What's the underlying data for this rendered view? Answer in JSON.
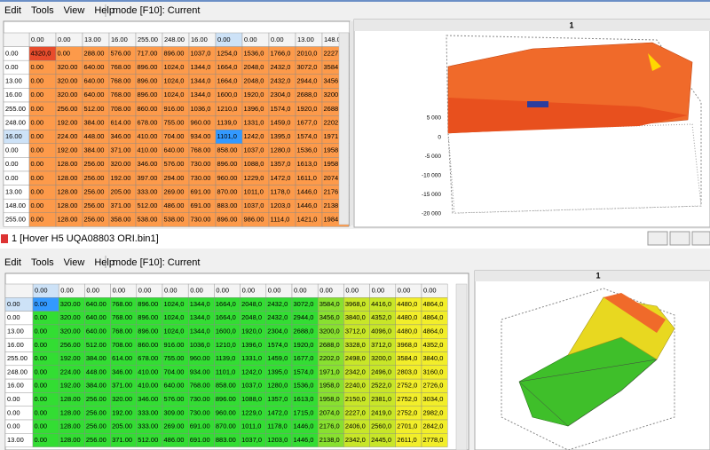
{
  "top": {
    "menu": [
      "Edit",
      "Tools",
      "View",
      "Help"
    ],
    "mode": "mode [F10]: Current",
    "table": {
      "columns": [
        "0.00",
        "0.00",
        "13.00",
        "16.00",
        "255.00",
        "248.00",
        "16.00",
        "0.00",
        "0.00",
        "0.00",
        "13.00",
        "148.0"
      ],
      "rows": [
        {
          "header": "0.00",
          "cells": [
            "4320,0",
            "0.00",
            "288.00",
            "576.00",
            "717.00",
            "896.00",
            "1037,0",
            "1254,0",
            "1536,0",
            "1766,0",
            "2010,0",
            "2227,"
          ]
        },
        {
          "header": "0.00",
          "cells": [
            "0.00",
            "320.00",
            "640.00",
            "768.00",
            "896.00",
            "1024,0",
            "1344,0",
            "1664,0",
            "2048,0",
            "2432,0",
            "3072,0",
            "3584"
          ]
        },
        {
          "header": "13.00",
          "cells": [
            "0.00",
            "320.00",
            "640.00",
            "768.00",
            "896.00",
            "1024,0",
            "1344,0",
            "1664,0",
            "2048,0",
            "2432,0",
            "2944,0",
            "3456"
          ]
        },
        {
          "header": "16.00",
          "cells": [
            "0.00",
            "320.00",
            "640.00",
            "768.00",
            "896.00",
            "1024,0",
            "1344,0",
            "1600,0",
            "1920,0",
            "2304,0",
            "2688,0",
            "3200"
          ]
        },
        {
          "header": "255.00",
          "cells": [
            "0.00",
            "256.00",
            "512.00",
            "708.00",
            "860.00",
            "916.00",
            "1036,0",
            "1210,0",
            "1396,0",
            "1574,0",
            "1920,0",
            "2688"
          ]
        },
        {
          "header": "248.00",
          "cells": [
            "0.00",
            "192.00",
            "384.00",
            "614.00",
            "678.00",
            "755.00",
            "960.00",
            "1139,0",
            "1331,0",
            "1459,0",
            "1677,0",
            "2202"
          ]
        },
        {
          "header": "16.00",
          "cells": [
            "0.00",
            "224.00",
            "448.00",
            "346.00",
            "410.00",
            "704.00",
            "934.00",
            "1101,0",
            "1242,0",
            "1395,0",
            "1574,0",
            "1971"
          ]
        },
        {
          "header": "0.00",
          "cells": [
            "0.00",
            "192.00",
            "384.00",
            "371.00",
            "410.00",
            "640.00",
            "768.00",
            "858.00",
            "1037,0",
            "1280,0",
            "1536,0",
            "1958"
          ]
        },
        {
          "header": "0.00",
          "cells": [
            "0.00",
            "128.00",
            "256.00",
            "320.00",
            "346.00",
            "576.00",
            "730.00",
            "896.00",
            "1088,0",
            "1357,0",
            "1613,0",
            "1958"
          ]
        },
        {
          "header": "0.00",
          "cells": [
            "0.00",
            "128.00",
            "256.00",
            "192.00",
            "397.00",
            "294.00",
            "730.00",
            "960.00",
            "1229,0",
            "1472,0",
            "1611,0",
            "2074"
          ]
        },
        {
          "header": "13.00",
          "cells": [
            "0.00",
            "128.00",
            "256.00",
            "205.00",
            "333.00",
            "269.00",
            "691.00",
            "870.00",
            "1011,0",
            "1178,0",
            "1446,0",
            "2176"
          ]
        },
        {
          "header": "148.00",
          "cells": [
            "0.00",
            "128.00",
            "256.00",
            "371.00",
            "512.00",
            "486.00",
            "691.00",
            "883.00",
            "1037,0",
            "1203,0",
            "1446,0",
            "2138"
          ]
        },
        {
          "header": "255.00",
          "cells": [
            "0.00",
            "128.00",
            "256.00",
            "358.00",
            "538.00",
            "538.00",
            "730.00",
            "896.00",
            "986.00",
            "1114,0",
            "1421,0",
            "1984"
          ]
        }
      ]
    },
    "chart": {
      "title": "1",
      "z_labels": [
        "5 000",
        "0",
        "-5 000",
        "-10 000",
        "-15 000",
        "-20 000"
      ]
    }
  },
  "title_bar": "1 [Hover H5 UQA08803 ORI.bin1]",
  "bottom": {
    "menu": [
      "Edit",
      "Tools",
      "View",
      "Help"
    ],
    "mode": "mode [F10]: Current",
    "table": {
      "columns": [
        "0.00",
        "0.00",
        "0.00",
        "0.00",
        "0.00",
        "0.00",
        "0.00",
        "0.00",
        "0.00",
        "0.00",
        "0.00",
        "0.00",
        "0.00",
        "0.00",
        "0.00",
        "0.00"
      ],
      "rows": [
        {
          "header": "0.00",
          "cells": [
            "0.00",
            "320.00",
            "640.00",
            "768.00",
            "896.00",
            "1024,0",
            "1344,0",
            "1664,0",
            "2048,0",
            "2432,0",
            "3072,0",
            "3584,0",
            "3968,0",
            "4416,0",
            "4480,0",
            "4864,0"
          ]
        },
        {
          "header": "0.00",
          "cells": [
            "0.00",
            "320.00",
            "640.00",
            "768.00",
            "896.00",
            "1024,0",
            "1344,0",
            "1664,0",
            "2048,0",
            "2432,0",
            "2944,0",
            "3456,0",
            "3840,0",
            "4352,0",
            "4480,0",
            "4864,0"
          ]
        },
        {
          "header": "13.00",
          "cells": [
            "0.00",
            "320.00",
            "640.00",
            "768.00",
            "896.00",
            "1024,0",
            "1344,0",
            "1600,0",
            "1920,0",
            "2304,0",
            "2688,0",
            "3200,0",
            "3712,0",
            "4096,0",
            "4480,0",
            "4864,0"
          ]
        },
        {
          "header": "16.00",
          "cells": [
            "0.00",
            "256.00",
            "512.00",
            "708.00",
            "860.00",
            "916.00",
            "1036,0",
            "1210,0",
            "1396,0",
            "1574,0",
            "1920,0",
            "2688,0",
            "3328,0",
            "3712,0",
            "3968,0",
            "4352,0"
          ]
        },
        {
          "header": "255.00",
          "cells": [
            "0.00",
            "192.00",
            "384.00",
            "614.00",
            "678.00",
            "755.00",
            "960.00",
            "1139,0",
            "1331,0",
            "1459,0",
            "1677,0",
            "2202,0",
            "2498,0",
            "3200,0",
            "3584,0",
            "3840,0"
          ]
        },
        {
          "header": "248.00",
          "cells": [
            "0.00",
            "224.00",
            "448.00",
            "346.00",
            "410.00",
            "704.00",
            "934.00",
            "1101,0",
            "1242,0",
            "1395,0",
            "1574,0",
            "1971,0",
            "2342,0",
            "2496,0",
            "2803,0",
            "3160,0"
          ]
        },
        {
          "header": "16.00",
          "cells": [
            "0.00",
            "192.00",
            "384.00",
            "371.00",
            "410.00",
            "640.00",
            "768.00",
            "858.00",
            "1037,0",
            "1280,0",
            "1536,0",
            "1958,0",
            "2240,0",
            "2522,0",
            "2752,0",
            "2726,0"
          ]
        },
        {
          "header": "0.00",
          "cells": [
            "0.00",
            "128.00",
            "256.00",
            "320.00",
            "346.00",
            "576.00",
            "730.00",
            "896.00",
            "1088,0",
            "1357,0",
            "1613,0",
            "1958,0",
            "2150,0",
            "2381,0",
            "2752,0",
            "3034,0"
          ]
        },
        {
          "header": "0.00",
          "cells": [
            "0.00",
            "128.00",
            "256.00",
            "192.00",
            "333.00",
            "309.00",
            "730.00",
            "960.00",
            "1229,0",
            "1472,0",
            "1715,0",
            "2074,0",
            "2227,0",
            "2419,0",
            "2752,0",
            "2982,0"
          ]
        },
        {
          "header": "0.00",
          "cells": [
            "0.00",
            "128.00",
            "256.00",
            "205.00",
            "333.00",
            "269.00",
            "691.00",
            "870.00",
            "1011,0",
            "1178,0",
            "1446,0",
            "2176,0",
            "2406,0",
            "2560,0",
            "2701,0",
            "2842,0"
          ]
        },
        {
          "header": "13.00",
          "cells": [
            "0.00",
            "128.00",
            "256.00",
            "371.00",
            "512.00",
            "486.00",
            "691.00",
            "883.00",
            "1037,0",
            "1203,0",
            "1446,0",
            "2138,0",
            "2342,0",
            "2445,0",
            "2611,0",
            "2778,0"
          ]
        }
      ]
    },
    "chart": {
      "title": "1"
    }
  }
}
